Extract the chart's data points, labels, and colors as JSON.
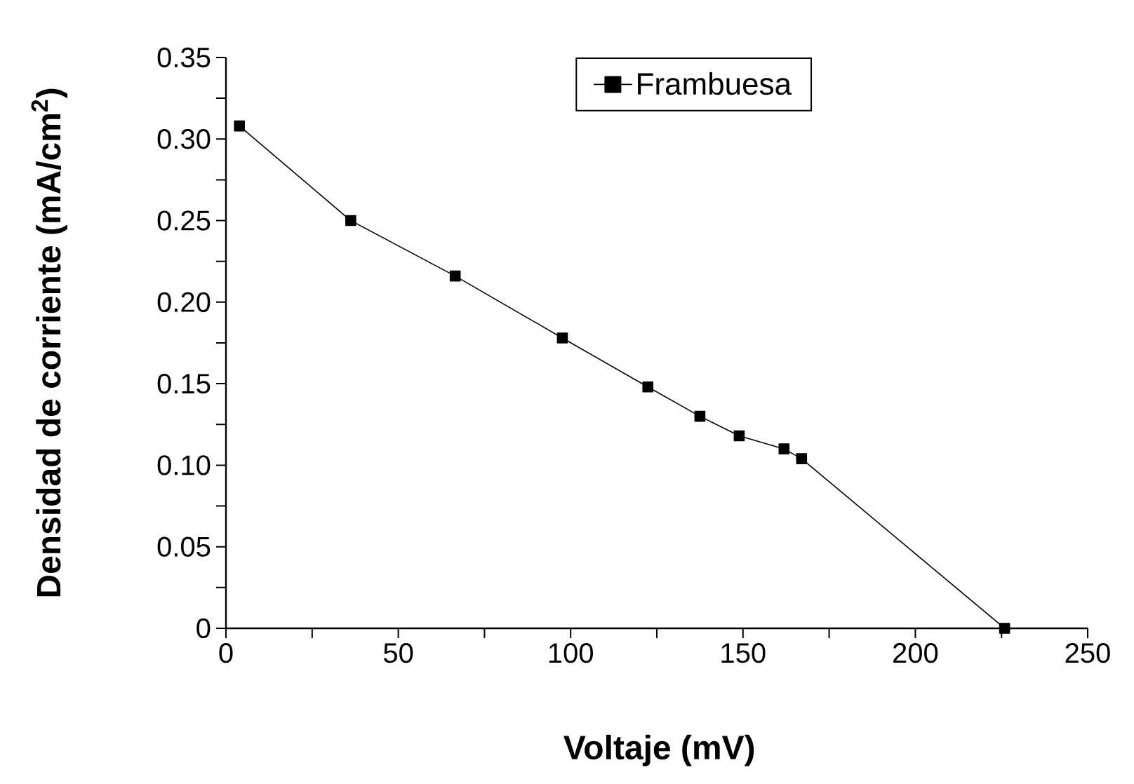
{
  "chart_data": {
    "type": "line",
    "xlabel": "Voltaje (mV)",
    "ylabel": "Densidad de corriente (mA/cm$^{2}$)",
    "x": [
      3.9,
      36.2,
      66.5,
      97.6,
      122.4,
      137.5,
      148.9,
      161.9,
      167,
      225.9
    ],
    "series": [
      {
        "name": "Frambuesa",
        "color": "#000000",
        "values": [
          0.308,
          0.25,
          0.216,
          0.178,
          0.148,
          0.13,
          0.118,
          0.11,
          0.104,
          0.0
        ]
      }
    ],
    "xlim": [
      0,
      250
    ],
    "xticks": [
      0,
      50,
      100,
      150,
      200,
      250
    ],
    "ylim": [
      0,
      0.35
    ],
    "yticks": [
      0,
      0.05,
      {
        "value": 0.1,
        "label": "0.10"
      },
      0.15,
      {
        "value": 0.2,
        "label": "0.20"
      },
      0.25,
      {
        "value": 0.3,
        "label": "0.30"
      },
      0.35
    ],
    "grid": false,
    "legend": "top right",
    "marker": "square",
    "line_style": "solid"
  }
}
